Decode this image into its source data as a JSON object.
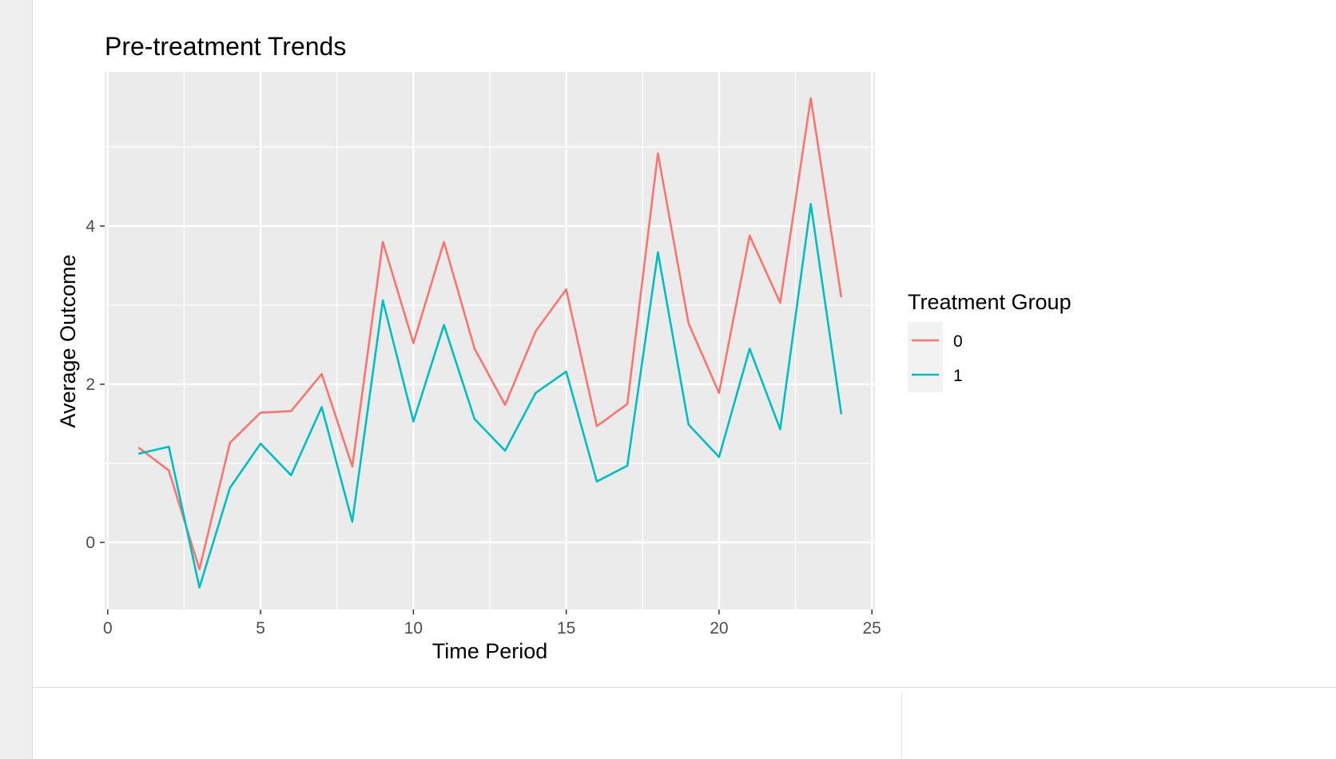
{
  "chart_data": {
    "type": "line",
    "title": "Pre-treatment Trends",
    "xlabel": "Time Period",
    "ylabel": "Average Outcome",
    "xlim": [
      -0.1,
      25.1
    ],
    "ylim": [
      -0.85,
      5.95
    ],
    "xticks": [
      0,
      5,
      10,
      15,
      20,
      25
    ],
    "yticks": [
      0,
      2,
      4
    ],
    "grid": true,
    "legend": {
      "title": "Treatment Group",
      "position": "right"
    },
    "x": [
      1,
      2,
      3,
      4,
      5,
      6,
      7,
      8,
      9,
      10,
      11,
      12,
      13,
      14,
      15,
      16,
      17,
      18,
      19,
      20,
      21,
      22,
      23,
      24
    ],
    "series": [
      {
        "name": "0",
        "color": "#F8766D",
        "values": [
          1.2,
          0.91,
          -0.34,
          1.26,
          1.64,
          1.66,
          2.13,
          0.96,
          3.8,
          2.52,
          3.8,
          2.45,
          1.74,
          2.67,
          3.2,
          1.47,
          1.75,
          4.92,
          2.77,
          1.89,
          3.88,
          3.03,
          5.62,
          3.1
        ]
      },
      {
        "name": "1",
        "color": "#00BFC4",
        "values": [
          1.12,
          1.21,
          -0.57,
          0.69,
          1.25,
          0.85,
          1.71,
          0.26,
          3.06,
          1.53,
          2.75,
          1.56,
          1.16,
          1.89,
          2.16,
          0.77,
          0.97,
          3.67,
          1.49,
          1.08,
          2.45,
          1.43,
          4.28,
          1.62
        ]
      }
    ]
  }
}
